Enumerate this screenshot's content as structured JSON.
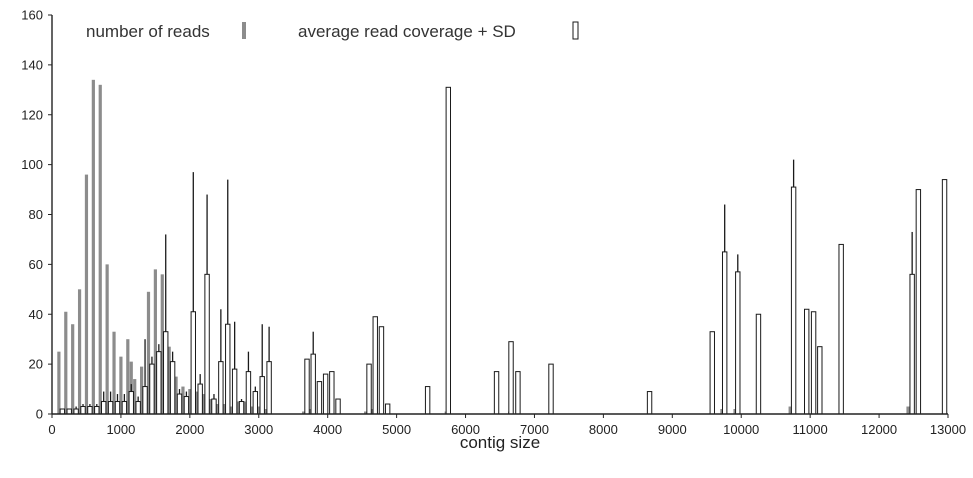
{
  "chart_data": {
    "type": "bar",
    "title": "",
    "xlabel": "contig size",
    "ylabel": "",
    "xlim": [
      0,
      13000
    ],
    "ylim": [
      0,
      160
    ],
    "x_ticks": [
      0,
      1000,
      2000,
      3000,
      4000,
      5000,
      6000,
      7000,
      8000,
      9000,
      10000,
      11000,
      12000,
      13000
    ],
    "y_ticks": [
      0,
      20,
      40,
      60,
      80,
      100,
      120,
      140,
      160
    ],
    "grid": false,
    "legend_position": "top",
    "colors": {
      "reads": "#8c8c8c",
      "coverage_fill": "#ffffff",
      "coverage_stroke": "#1a1a1a",
      "axis": "#222222"
    },
    "series": [
      {
        "name": "number of reads",
        "style": "solid-gray",
        "points": [
          {
            "x": 100,
            "y": 25
          },
          {
            "x": 200,
            "y": 41
          },
          {
            "x": 300,
            "y": 36
          },
          {
            "x": 400,
            "y": 50
          },
          {
            "x": 500,
            "y": 96
          },
          {
            "x": 600,
            "y": 134
          },
          {
            "x": 700,
            "y": 132
          },
          {
            "x": 800,
            "y": 60
          },
          {
            "x": 900,
            "y": 33
          },
          {
            "x": 1000,
            "y": 23
          },
          {
            "x": 1100,
            "y": 30
          },
          {
            "x": 1150,
            "y": 21
          },
          {
            "x": 1200,
            "y": 14
          },
          {
            "x": 1300,
            "y": 19
          },
          {
            "x": 1400,
            "y": 49
          },
          {
            "x": 1500,
            "y": 58
          },
          {
            "x": 1600,
            "y": 56
          },
          {
            "x": 1700,
            "y": 27
          },
          {
            "x": 1800,
            "y": 15
          },
          {
            "x": 1900,
            "y": 11
          },
          {
            "x": 2000,
            "y": 10
          },
          {
            "x": 2100,
            "y": 9
          },
          {
            "x": 2200,
            "y": 8
          },
          {
            "x": 2300,
            "y": 6
          },
          {
            "x": 2400,
            "y": 4
          },
          {
            "x": 2500,
            "y": 4
          },
          {
            "x": 2600,
            "y": 3
          },
          {
            "x": 2700,
            "y": 5
          },
          {
            "x": 2800,
            "y": 5
          },
          {
            "x": 2900,
            "y": 3
          },
          {
            "x": 3000,
            "y": 3
          },
          {
            "x": 3100,
            "y": 2
          },
          {
            "x": 3650,
            "y": 1
          },
          {
            "x": 3750,
            "y": 2
          },
          {
            "x": 4550,
            "y": 1
          },
          {
            "x": 4650,
            "y": 2
          },
          {
            "x": 5720,
            "y": 1
          },
          {
            "x": 6640,
            "y": 1
          },
          {
            "x": 9720,
            "y": 2
          },
          {
            "x": 9910,
            "y": 2
          },
          {
            "x": 10710,
            "y": 3
          },
          {
            "x": 12420,
            "y": 3
          }
        ]
      },
      {
        "name": "average read coverage + SD",
        "style": "open-bars-with-sd",
        "points": [
          {
            "x": 150,
            "y": 2,
            "sd": 0
          },
          {
            "x": 250,
            "y": 2,
            "sd": 0
          },
          {
            "x": 350,
            "y": 2,
            "sd": 1
          },
          {
            "x": 450,
            "y": 3,
            "sd": 1
          },
          {
            "x": 550,
            "y": 3,
            "sd": 1
          },
          {
            "x": 650,
            "y": 3,
            "sd": 1
          },
          {
            "x": 750,
            "y": 5,
            "sd": 4
          },
          {
            "x": 850,
            "y": 5,
            "sd": 4
          },
          {
            "x": 950,
            "y": 5,
            "sd": 3
          },
          {
            "x": 1050,
            "y": 5,
            "sd": 3
          },
          {
            "x": 1150,
            "y": 9,
            "sd": 3
          },
          {
            "x": 1250,
            "y": 5,
            "sd": 2
          },
          {
            "x": 1350,
            "y": 11,
            "sd": 19
          },
          {
            "x": 1450,
            "y": 20,
            "sd": 3
          },
          {
            "x": 1550,
            "y": 25,
            "sd": 3
          },
          {
            "x": 1650,
            "y": 33,
            "sd": 39
          },
          {
            "x": 1750,
            "y": 21,
            "sd": 4
          },
          {
            "x": 1850,
            "y": 8,
            "sd": 2
          },
          {
            "x": 1950,
            "y": 7,
            "sd": 2
          },
          {
            "x": 2050,
            "y": 41,
            "sd": 56
          },
          {
            "x": 2150,
            "y": 12,
            "sd": 4
          },
          {
            "x": 2250,
            "y": 56,
            "sd": 32
          },
          {
            "x": 2350,
            "y": 6,
            "sd": 2
          },
          {
            "x": 2450,
            "y": 21,
            "sd": 21
          },
          {
            "x": 2550,
            "y": 36,
            "sd": 58
          },
          {
            "x": 2650,
            "y": 18,
            "sd": 19
          },
          {
            "x": 2750,
            "y": 5,
            "sd": 1
          },
          {
            "x": 2850,
            "y": 17,
            "sd": 8
          },
          {
            "x": 2950,
            "y": 9,
            "sd": 2
          },
          {
            "x": 3050,
            "y": 15,
            "sd": 21
          },
          {
            "x": 3150,
            "y": 21,
            "sd": 14
          },
          {
            "x": 3700,
            "y": 22,
            "sd": 0
          },
          {
            "x": 3790,
            "y": 24,
            "sd": 9
          },
          {
            "x": 3880,
            "y": 13,
            "sd": 0
          },
          {
            "x": 3970,
            "y": 16,
            "sd": 0
          },
          {
            "x": 4060,
            "y": 17,
            "sd": 0
          },
          {
            "x": 4150,
            "y": 6,
            "sd": 0
          },
          {
            "x": 4600,
            "y": 20,
            "sd": 0
          },
          {
            "x": 4690,
            "y": 39,
            "sd": 0
          },
          {
            "x": 4780,
            "y": 35,
            "sd": 0
          },
          {
            "x": 4870,
            "y": 4,
            "sd": 0
          },
          {
            "x": 5450,
            "y": 11,
            "sd": 0
          },
          {
            "x": 5750,
            "y": 131,
            "sd": 0
          },
          {
            "x": 6450,
            "y": 17,
            "sd": 0
          },
          {
            "x": 6660,
            "y": 29,
            "sd": 0
          },
          {
            "x": 6760,
            "y": 17,
            "sd": 0
          },
          {
            "x": 7240,
            "y": 20,
            "sd": 0
          },
          {
            "x": 8670,
            "y": 9,
            "sd": 0
          },
          {
            "x": 9580,
            "y": 33,
            "sd": 0
          },
          {
            "x": 9760,
            "y": 65,
            "sd": 19
          },
          {
            "x": 9950,
            "y": 57,
            "sd": 7
          },
          {
            "x": 10250,
            "y": 40,
            "sd": 0
          },
          {
            "x": 10760,
            "y": 91,
            "sd": 11
          },
          {
            "x": 10950,
            "y": 42,
            "sd": 0
          },
          {
            "x": 11050,
            "y": 41,
            "sd": 0
          },
          {
            "x": 11140,
            "y": 27,
            "sd": 0
          },
          {
            "x": 11450,
            "y": 68,
            "sd": 0
          },
          {
            "x": 12480,
            "y": 56,
            "sd": 17
          },
          {
            "x": 12570,
            "y": 90,
            "sd": 0
          },
          {
            "x": 12950,
            "y": 94,
            "sd": 0
          }
        ]
      }
    ]
  }
}
